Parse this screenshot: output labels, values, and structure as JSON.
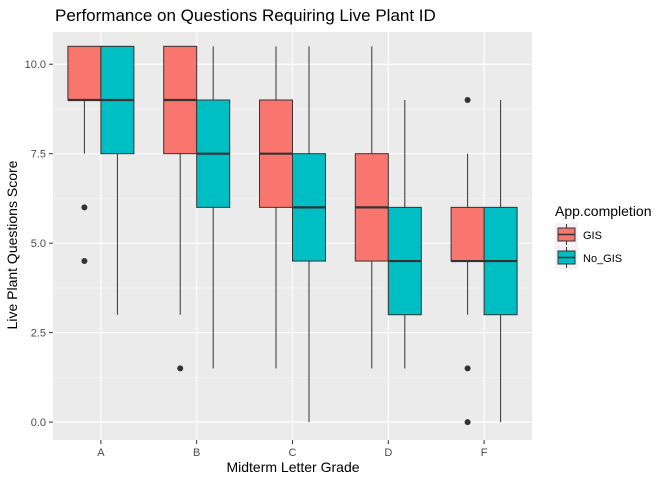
{
  "chart_data": {
    "type": "boxplot",
    "title": "Performance on Questions Requiring Live Plant ID",
    "xlabel": "Midterm Letter Grade",
    "ylabel": "Live Plant Questions Score",
    "categories": [
      "A",
      "B",
      "C",
      "D",
      "F"
    ],
    "ylim": [
      -0.5,
      10.9
    ],
    "yticks": [
      0,
      2.5,
      5,
      7.5,
      10
    ],
    "ytick_labels": [
      "0.0",
      "2.5",
      "5.0",
      "7.5",
      "10.0"
    ],
    "grid": true,
    "legend": {
      "title": "App.completion",
      "placement": "right"
    },
    "series": [
      {
        "name": "GIS",
        "color": "#F8766D",
        "boxes": [
          {
            "category": "A",
            "min": 7.5,
            "q1": 9.0,
            "median": 9.0,
            "q3": 10.5,
            "max": 10.5,
            "outliers": [
              6.0,
              4.5
            ]
          },
          {
            "category": "B",
            "min": 3.0,
            "q1": 7.5,
            "median": 9.0,
            "q3": 10.5,
            "max": 10.5,
            "outliers": [
              1.5
            ]
          },
          {
            "category": "C",
            "min": 1.5,
            "q1": 6.0,
            "median": 7.5,
            "q3": 9.0,
            "max": 10.5,
            "outliers": []
          },
          {
            "category": "D",
            "min": 1.5,
            "q1": 4.5,
            "median": 6.0,
            "q3": 7.5,
            "max": 10.5,
            "outliers": []
          },
          {
            "category": "F",
            "min": 3.0,
            "q1": 4.5,
            "median": 4.5,
            "q3": 6.0,
            "max": 7.5,
            "outliers": [
              9.0,
              1.5,
              0.0
            ]
          }
        ]
      },
      {
        "name": "No_GIS",
        "color": "#00BFC4",
        "boxes": [
          {
            "category": "A",
            "min": 3.0,
            "q1": 7.5,
            "median": 9.0,
            "q3": 10.5,
            "max": 10.5,
            "outliers": []
          },
          {
            "category": "B",
            "min": 1.5,
            "q1": 6.0,
            "median": 7.5,
            "q3": 9.0,
            "max": 10.5,
            "outliers": []
          },
          {
            "category": "C",
            "min": 0.0,
            "q1": 4.5,
            "median": 6.0,
            "q3": 7.5,
            "max": 10.5,
            "outliers": []
          },
          {
            "category": "D",
            "min": 1.5,
            "q1": 3.0,
            "median": 4.5,
            "q3": 6.0,
            "max": 9.0,
            "outliers": []
          },
          {
            "category": "F",
            "min": 0.0,
            "q1": 3.0,
            "median": 4.5,
            "q3": 6.0,
            "max": 9.0,
            "outliers": []
          }
        ]
      }
    ]
  }
}
